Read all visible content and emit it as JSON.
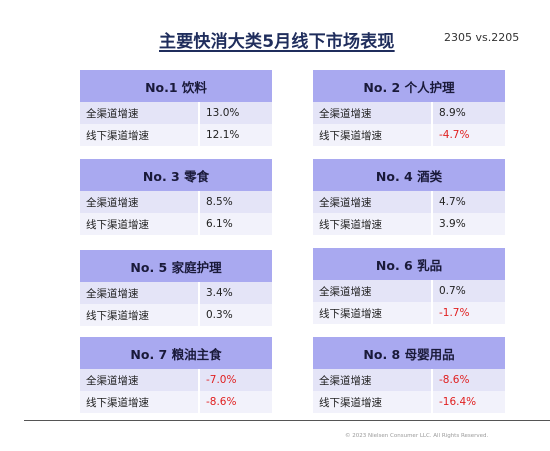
{
  "title": "主要快消大类5月线下市场表现",
  "subtitle": "2305 vs.2205",
  "row_labels": {
    "all": "全渠道增速",
    "offline": "线下渠道增速"
  },
  "categories": [
    {
      "header": "No.1   饮料",
      "all": "13.0%",
      "offline": "12.1%"
    },
    {
      "header": "No. 2   个人护理",
      "all": "8.9%",
      "offline": "-4.7%"
    },
    {
      "header": "No. 3   零食",
      "all": "8.5%",
      "offline": "6.1%"
    },
    {
      "header": "No. 4   酒类",
      "all": "4.7%",
      "offline": "3.9%"
    },
    {
      "header": "No. 5   家庭护理",
      "all": "3.4%",
      "offline": "0.3%"
    },
    {
      "header": "No. 6   乳品",
      "all": "0.7%",
      "offline": "-1.7%"
    },
    {
      "header": "No. 7   粮油主食",
      "all": "-7.0%",
      "offline": "-8.6%"
    },
    {
      "header": "No. 8   母婴用品",
      "all": "-8.6%",
      "offline": "-16.4%"
    }
  ],
  "colors": {
    "header_bg": "#a9a9f0",
    "row_odd": "#e4e4f7",
    "row_even": "#f2f2fb",
    "negative": "#e02020"
  },
  "copyright": "© 2023 Nielsen Consumer LLC. All Rights Reserved."
}
